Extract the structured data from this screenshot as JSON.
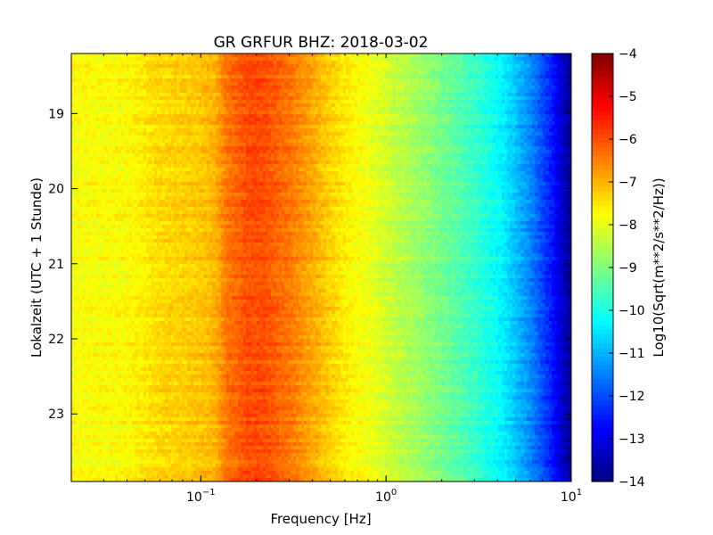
{
  "chart_data": {
    "type": "heatmap",
    "title": "GR GRFUR BHZ: 2018-03-02",
    "xlabel": "Frequency [Hz]",
    "ylabel": "Lokalzeit (UTC + 1 Stunde)",
    "x_scale": "log",
    "xlim": [
      0.02,
      10
    ],
    "x_ticks": [
      {
        "value": 0.1,
        "base": "10",
        "exp": "−1"
      },
      {
        "value": 1,
        "base": "10",
        "exp": "0"
      },
      {
        "value": 10,
        "base": "10",
        "exp": "1"
      }
    ],
    "ylim": [
      18.2,
      23.9
    ],
    "y_inverted": true,
    "y_ticks": [
      19,
      20,
      21,
      22,
      23
    ],
    "colorbar": {
      "label": "Log10(Sqrt(m**2/s**2/Hz))",
      "range": [
        -14,
        -4
      ],
      "ticks": [
        -4,
        -5,
        -6,
        -7,
        -8,
        -9,
        -10,
        -11,
        -12,
        -13,
        -14
      ],
      "colormap": "jet"
    },
    "spectrum_profile": {
      "frequency_hz": [
        0.02,
        0.04,
        0.06,
        0.08,
        0.1,
        0.12,
        0.14,
        0.18,
        0.22,
        0.3,
        0.4,
        0.5,
        0.6,
        0.8,
        1.0,
        1.5,
        2.0,
        3.0,
        4.0,
        5.0,
        6.0,
        7.0,
        8.0,
        9.0,
        10.0
      ],
      "value": [
        -7.8,
        -7.75,
        -7.4,
        -7.3,
        -7.2,
        -7.0,
        -6.4,
        -6.0,
        -6.0,
        -6.4,
        -6.9,
        -7.3,
        -7.6,
        -7.9,
        -8.2,
        -8.7,
        -9.1,
        -9.7,
        -10.2,
        -10.8,
        -11.4,
        -12.0,
        -12.6,
        -13.3,
        -13.8
      ]
    },
    "grid": false
  }
}
